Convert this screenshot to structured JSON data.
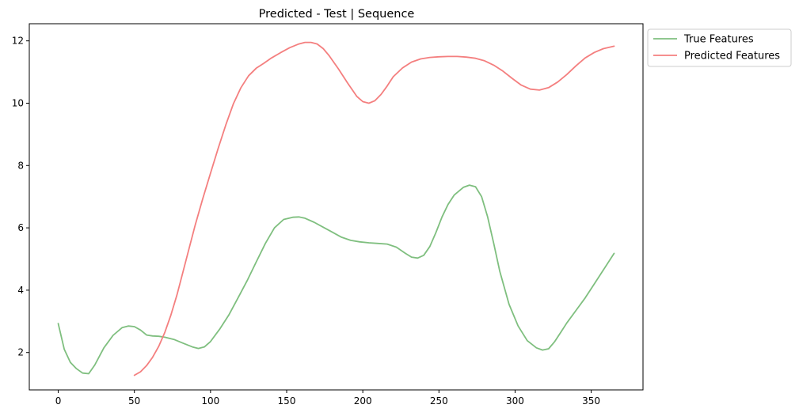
{
  "chart_data": {
    "type": "line",
    "title": "Predicted - Test | Sequence",
    "xlabel": "",
    "ylabel": "",
    "xlim": [
      -19,
      384
    ],
    "ylim": [
      0.8,
      12.55
    ],
    "xticks": [
      0,
      50,
      100,
      150,
      200,
      250,
      300,
      350
    ],
    "yticks": [
      2,
      4,
      6,
      8,
      10,
      12
    ],
    "grid": false,
    "legend_position": "outside-top-right",
    "series": [
      {
        "name": "True Features",
        "color": "#7fbf7f",
        "x": [
          0,
          4,
          8,
          12,
          16,
          20,
          24,
          30,
          36,
          42,
          46,
          50,
          54,
          58,
          62,
          66,
          70,
          76,
          82,
          88,
          92,
          96,
          100,
          106,
          112,
          118,
          124,
          130,
          136,
          142,
          148,
          154,
          158,
          162,
          168,
          174,
          180,
          186,
          192,
          198,
          204,
          210,
          216,
          222,
          228,
          232,
          236,
          240,
          244,
          248,
          252,
          256,
          260,
          266,
          270,
          274,
          278,
          282,
          286,
          290,
          296,
          302,
          308,
          314,
          318,
          322,
          326,
          330,
          334,
          340,
          346,
          352,
          358,
          365
        ],
        "y": [
          2.93,
          2.1,
          1.68,
          1.48,
          1.34,
          1.32,
          1.6,
          2.15,
          2.55,
          2.8,
          2.85,
          2.83,
          2.72,
          2.56,
          2.53,
          2.52,
          2.49,
          2.42,
          2.3,
          2.18,
          2.13,
          2.18,
          2.35,
          2.75,
          3.2,
          3.75,
          4.3,
          4.9,
          5.5,
          6.0,
          6.27,
          6.34,
          6.35,
          6.31,
          6.18,
          6.02,
          5.86,
          5.7,
          5.6,
          5.55,
          5.52,
          5.5,
          5.48,
          5.38,
          5.18,
          5.06,
          5.03,
          5.12,
          5.4,
          5.85,
          6.35,
          6.75,
          7.05,
          7.3,
          7.37,
          7.32,
          7.0,
          6.35,
          5.5,
          4.6,
          3.55,
          2.85,
          2.38,
          2.15,
          2.08,
          2.12,
          2.35,
          2.65,
          2.95,
          3.35,
          3.75,
          4.2,
          4.65,
          5.18
        ]
      },
      {
        "name": "Predicted Features",
        "color": "#f47f7f",
        "x": [
          50,
          54,
          58,
          62,
          66,
          70,
          74,
          78,
          82,
          86,
          90,
          95,
          100,
          105,
          110,
          115,
          120,
          125,
          130,
          135,
          140,
          146,
          152,
          158,
          162,
          166,
          170,
          174,
          178,
          184,
          190,
          196,
          200,
          204,
          208,
          212,
          216,
          220,
          226,
          232,
          238,
          244,
          250,
          256,
          262,
          268,
          274,
          280,
          286,
          292,
          298,
          304,
          310,
          316,
          322,
          328,
          334,
          340,
          346,
          352,
          358,
          365
        ],
        "y": [
          1.27,
          1.38,
          1.58,
          1.85,
          2.2,
          2.65,
          3.2,
          3.85,
          4.6,
          5.35,
          6.1,
          6.95,
          7.75,
          8.55,
          9.3,
          9.98,
          10.5,
          10.88,
          11.12,
          11.28,
          11.45,
          11.62,
          11.78,
          11.9,
          11.95,
          11.95,
          11.9,
          11.75,
          11.52,
          11.1,
          10.65,
          10.22,
          10.05,
          10.0,
          10.08,
          10.28,
          10.55,
          10.85,
          11.13,
          11.32,
          11.42,
          11.47,
          11.49,
          11.5,
          11.5,
          11.48,
          11.44,
          11.36,
          11.22,
          11.03,
          10.8,
          10.58,
          10.45,
          10.42,
          10.5,
          10.68,
          10.92,
          11.2,
          11.45,
          11.63,
          11.75,
          11.83
        ]
      }
    ]
  }
}
